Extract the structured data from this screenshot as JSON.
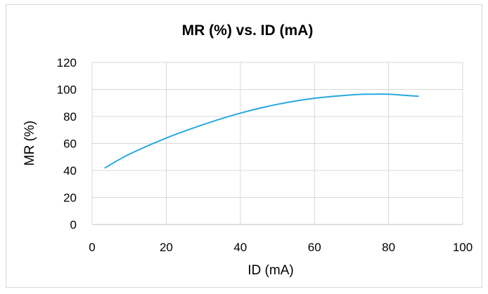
{
  "chart_data": {
    "type": "line",
    "title": "MR (%) vs. ID (mA)",
    "xlabel": "ID (mA)",
    "ylabel": "MR (%)",
    "xlim": [
      0,
      100
    ],
    "ylim": [
      0,
      120
    ],
    "xticks": [
      "0",
      "20",
      "40",
      "60",
      "80",
      "100"
    ],
    "yticks": [
      "0",
      "20",
      "40",
      "60",
      "80",
      "100",
      "120"
    ],
    "grid": true,
    "series": [
      {
        "color": "#29a8e0",
        "x": [
          3.5,
          10,
          20,
          30,
          40,
          50,
          60,
          70,
          75,
          80,
          85,
          88
        ],
        "y": [
          42,
          52,
          64,
          74,
          82.5,
          89,
          93.5,
          96,
          96.5,
          96.5,
          95.5,
          95
        ]
      }
    ]
  }
}
